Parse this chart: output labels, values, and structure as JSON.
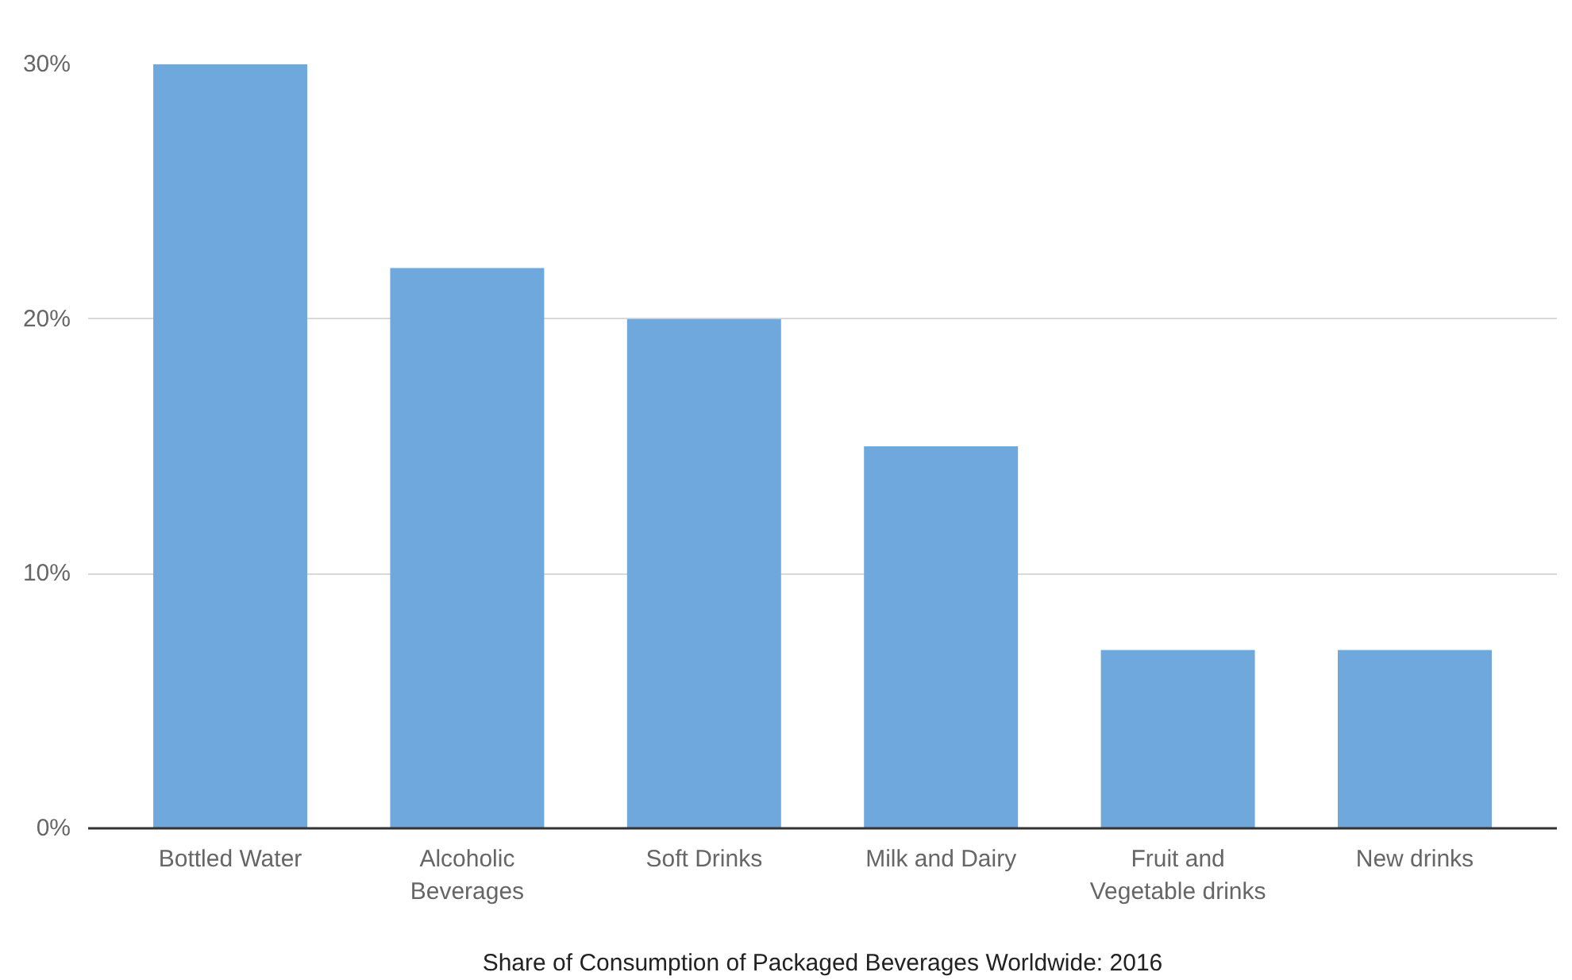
{
  "chart_data": {
    "type": "bar",
    "xlabel": "Share of Consumption of Packaged Beverages Worldwide: 2016",
    "categories": [
      "Bottled Water",
      "Alcoholic Beverages",
      "Soft Drinks",
      "Milk and Dairy",
      "Fruit and Vegetable drinks",
      "New drinks"
    ],
    "values": [
      30,
      22,
      20,
      15,
      7,
      7
    ],
    "color": "#6fa8dc",
    "ylim": [
      0,
      30
    ],
    "yticks": [
      {
        "value": 0,
        "label": "0%"
      },
      {
        "value": 10,
        "label": "10%"
      },
      {
        "value": 20,
        "label": "20%"
      },
      {
        "value": 30,
        "label": "30%"
      }
    ],
    "grid": "y"
  }
}
